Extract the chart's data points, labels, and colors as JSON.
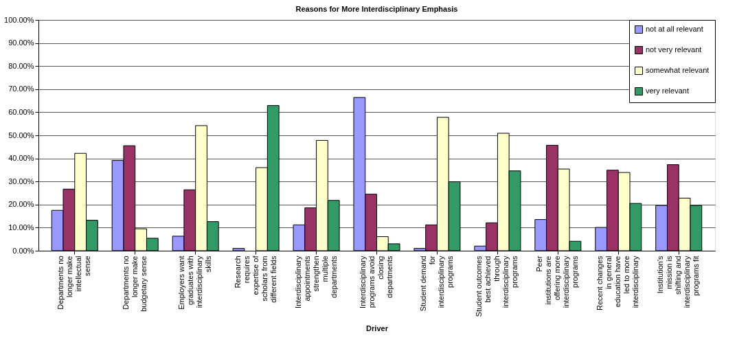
{
  "chart_data": {
    "type": "bar",
    "title": "Reasons for More Interdisciplinary Emphasis",
    "xlabel": "Driver",
    "categories": [
      "Departments no longer make intellectual sense",
      "Departments no longer make budgetary sense",
      "Employers want graduates with interdisciplinary skills",
      "Research requires expertise of scholars from different fields",
      "Interdisciplinary appointments strengthen multiple departments",
      "Interdisciplinary programs avoid closing departments",
      "Student demand for interdisciplinary programs",
      "Student outcomes best achieved through interdisciplinary programs",
      "Peer institutions are offering more interdisciplinary programs",
      "Recent changes in general education have led to more interdisciplinary",
      "Institution's mission is shifting and interdisciplinary programs fit"
    ],
    "series": [
      {
        "name": "not at all relevant",
        "color": "#9999ff",
        "values": [
          17.5,
          39.1,
          6.3,
          1.0,
          11.2,
          66.4,
          1.0,
          2.0,
          13.5,
          10.1,
          19.6
        ]
      },
      {
        "name": "not very relevant",
        "color": "#993366",
        "values": [
          26.7,
          45.5,
          26.4,
          null,
          18.6,
          24.5,
          11.2,
          12.1,
          45.7,
          34.9,
          37.3
        ]
      },
      {
        "name": "somewhat relevant",
        "color": "#ffffcc",
        "values": [
          42.2,
          9.5,
          54.2,
          36.0,
          47.8,
          6.1,
          57.8,
          50.9,
          35.4,
          33.9,
          22.8
        ]
      },
      {
        "name": "very relevant",
        "color": "#339966",
        "values": [
          13.2,
          5.4,
          12.6,
          62.9,
          21.8,
          3.0,
          29.9,
          34.6,
          4.1,
          20.5,
          19.6
        ]
      }
    ],
    "ylim": [
      0,
      100
    ],
    "yticks": [
      {
        "value": 0,
        "label": "0.00%"
      },
      {
        "value": 10,
        "label": "10.00%"
      },
      {
        "value": 20,
        "label": "20.00%"
      },
      {
        "value": 30,
        "label": "30.00%"
      },
      {
        "value": 40,
        "label": "40.00%"
      },
      {
        "value": 50,
        "label": "50.00%"
      },
      {
        "value": 60,
        "label": "60.00%"
      },
      {
        "value": 70,
        "label": "70.00%"
      },
      {
        "value": 80,
        "label": "80.00%"
      },
      {
        "value": 90,
        "label": "90.00%"
      },
      {
        "value": 100,
        "label": "100.00%"
      }
    ],
    "grid": "y",
    "legend": "top right"
  }
}
